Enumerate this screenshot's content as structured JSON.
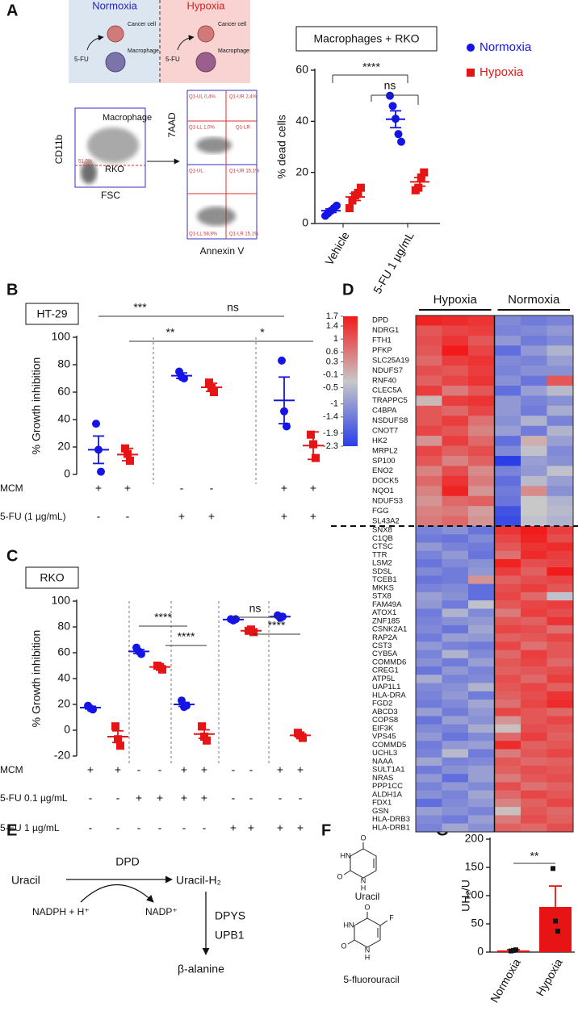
{
  "figure": {
    "panels": [
      "A",
      "B",
      "C",
      "D",
      "E",
      "F",
      "G"
    ],
    "schematic": {
      "normoxia": "Normoxia",
      "hypoxia": "Hypoxia",
      "cancer_cell": "Cancer cell",
      "macrophage": "Macrophage",
      "drug": "5-FU"
    },
    "flow": {
      "y1": "CD11b",
      "x1": "FSC",
      "gate_top": "Macrophage",
      "gate_bottom": "RKO",
      "gate_pct": "51,0%",
      "y2": "7AAD",
      "x2": "Annexin V",
      "quadrants_top": [
        "Q1-UL 0,4%",
        "Q1-UR 2,4%",
        "Q1-LL 1,0%",
        "Q1-LR"
      ],
      "quadrants_bottom": [
        "Q1-UL",
        "Q1-UR 15,1%",
        "Q1-LL 58,8%",
        "Q1-LR 15,1%"
      ]
    },
    "pathway": {
      "substrate": "Uracil",
      "enzyme": "DPD",
      "product": "Uracil-H₂",
      "cofactor_in": "NADPH + H⁺",
      "cofactor_out": "NADP⁺",
      "enzyme2": "DPYS",
      "enzyme3": "UPB1",
      "end": "β-alanine"
    },
    "structures": {
      "uracil": "Uracil",
      "fluorouracil": "5-fluorouracil",
      "atoms_uracil": [
        "O",
        "HN",
        "O",
        "N",
        "H"
      ],
      "atoms_fu": [
        "O",
        "HN",
        "F",
        "O",
        "N",
        "H"
      ]
    }
  },
  "chart_data": [
    {
      "type": "dot",
      "title": "Macrophages + RKO",
      "y_label": "% dead cells",
      "categories": [
        "Vehicle",
        "5-FU 1 µg/mL"
      ],
      "series": [
        {
          "name": "Normoxia",
          "color": "#1414e6",
          "marker": "circle",
          "values": [
            [
              3,
              4,
              5,
              6,
              7
            ],
            [
              50,
              46,
              41,
              35,
              32
            ]
          ],
          "mean": [
            5,
            40.8
          ],
          "sem": [
            0.7,
            3.3
          ]
        },
        {
          "name": "Hypoxia",
          "color": "#e61414",
          "marker": "square",
          "values": [
            [
              6,
              9,
              11,
              12,
              14
            ],
            [
              13,
              14,
              18,
              20
            ]
          ],
          "mean": [
            10.4,
            16.3
          ],
          "sem": [
            1.4,
            1.7
          ]
        }
      ],
      "annotations": [
        "****",
        "ns"
      ],
      "ylim": [
        0,
        60
      ],
      "yticks": [
        0,
        20,
        40,
        60
      ],
      "legend": "right"
    },
    {
      "type": "dot",
      "title": "HT-29",
      "y_label": "% Growth inhibition",
      "columns": [
        {
          "color": "#1414e6",
          "marker": "circle",
          "values": [
            37,
            18,
            2
          ],
          "mean": 18,
          "sem": 10
        },
        {
          "color": "#e61414",
          "marker": "square",
          "values": [
            19,
            15,
            10
          ],
          "mean": 14.5,
          "sem": 4.5
        },
        {
          "color": "#1414e6",
          "marker": "circle",
          "values": [
            75,
            71,
            70
          ],
          "mean": 72,
          "sem": 2
        },
        {
          "color": "#e61414",
          "marker": "square",
          "values": [
            67,
            63,
            60
          ],
          "mean": 63.5,
          "sem": 3
        },
        {
          "color": "#1414e6",
          "marker": "circle",
          "values": [
            83,
            46,
            35
          ],
          "mean": 54,
          "sem": 17
        },
        {
          "color": "#e61414",
          "marker": "square",
          "values": [
            29,
            22,
            12
          ],
          "mean": 21,
          "sem": 10
        }
      ],
      "rows": [
        {
          "label": "MCM",
          "signs": [
            "+",
            "+",
            "-",
            "-",
            "+",
            "+"
          ]
        },
        {
          "label": "5-FU (1 µg/mL)",
          "signs": [
            "-",
            "-",
            "+",
            "+",
            "+",
            "+"
          ]
        }
      ],
      "annotations": [
        "***",
        "ns",
        "**",
        "*"
      ],
      "ylim": [
        0,
        100
      ],
      "yticks": [
        0,
        20,
        40,
        60,
        80,
        100
      ]
    },
    {
      "type": "dot",
      "title": "RKO",
      "y_label": "% Growth inhibition",
      "columns": [
        {
          "color": "#1414e6",
          "marker": "circle",
          "values": [
            19,
            17,
            16
          ],
          "mean": 17.5,
          "sem": 1
        },
        {
          "color": "#e61414",
          "marker": "square",
          "values": [
            3,
            -7,
            -12
          ],
          "mean": -5,
          "sem": 4.5
        },
        {
          "color": "#1414e6",
          "marker": "circle",
          "values": [
            64,
            61,
            59
          ],
          "mean": 61,
          "sem": 1.5
        },
        {
          "color": "#e61414",
          "marker": "square",
          "values": [
            50,
            49,
            47
          ],
          "mean": 49,
          "sem": 1
        },
        {
          "color": "#1414e6",
          "marker": "circle",
          "values": [
            23,
            18,
            19
          ],
          "mean": 20,
          "sem": 1.5
        },
        {
          "color": "#e61414",
          "marker": "square",
          "values": [
            3,
            -5,
            -8
          ],
          "mean": -3,
          "sem": 3.3
        },
        {
          "color": "#1414e6",
          "marker": "circle",
          "values": [
            86,
            85,
            86
          ],
          "mean": 85.7,
          "sem": 0.3
        },
        {
          "color": "#e61414",
          "marker": "square",
          "values": [
            77,
            78,
            76
          ],
          "mean": 77,
          "sem": 0.6
        },
        {
          "color": "#1414e6",
          "marker": "circle",
          "values": [
            89,
            87,
            88
          ],
          "mean": 88,
          "sem": 0.6
        },
        {
          "color": "#e61414",
          "marker": "square",
          "values": [
            -2,
            -4,
            -6
          ],
          "mean": -4,
          "sem": 1.2
        }
      ],
      "rows": [
        {
          "label": "MCM",
          "signs": [
            "+",
            "+",
            "-",
            "-",
            "+",
            "+",
            "-",
            "-",
            "+",
            "+"
          ]
        },
        {
          "label": "5-FU 0.1 µg/mL",
          "signs": [
            "-",
            "-",
            "+",
            "+",
            "+",
            "+",
            "-",
            "-",
            "-",
            "-"
          ]
        },
        {
          "label": "5-FU 1 µg/mL",
          "signs": [
            "-",
            "-",
            "-",
            "-",
            "-",
            "-",
            "+",
            "+",
            "+",
            "+"
          ]
        }
      ],
      "annotations": [
        "****",
        "****",
        "ns",
        "****"
      ],
      "ylim": [
        -20,
        100
      ],
      "yticks": [
        -20,
        0,
        20,
        40,
        60,
        80,
        100
      ]
    },
    {
      "type": "heatmap",
      "column_groups": [
        "Hypoxia",
        "Normoxia"
      ],
      "colors": [
        "#2a3ee8",
        "#c8c8c8",
        "#f21a1a"
      ],
      "clim": [
        -2.3,
        1.7
      ],
      "colorbar_ticks": [
        1.7,
        1.4,
        1,
        0.6,
        0.3,
        -0.1,
        -0.5,
        -1,
        -1.4,
        -1.9,
        -2.3
      ],
      "rows": [
        "DPD",
        "NDRG1",
        "FTH1",
        "PFKP",
        "SLC25A19",
        "NDUFS7",
        "RNF40",
        "CLEC5A",
        "TRAPPC5",
        "C4BPA",
        "NSDUFS8",
        "CNOT7",
        "HK2",
        "MRPL2",
        "SP100",
        "ENO2",
        "DOCK5",
        "NQO1",
        "NDUFS3",
        "FGG",
        "SL43A2",
        "SNX8",
        "C1QB",
        "CTSC",
        "TTR",
        "LSM2",
        "SDSL",
        "TCEB1",
        "MKKS",
        "STX8",
        "FAM49A",
        "ATOX1",
        "ZNF185",
        "CSNK2A1",
        "RAP2A",
        "CST3",
        "CYB5A",
        "COMMD6",
        "CREG1",
        "ATP5L",
        "UAP1L1",
        "HLA-DRA",
        "FGD2",
        "ABCD3",
        "COPS8",
        "EIF3K",
        "VPS45",
        "COMMD5",
        "UCHL3",
        "NAAA",
        "SULT1A1",
        "NRAS",
        "PPP1CC",
        "ALDH1A",
        "FDX1",
        "GSN",
        "HLA-DRB3",
        "HLA-DRB1"
      ],
      "values": [
        [
          1.6,
          1.5,
          1.4,
          -1.2,
          -1.4,
          -1.3
        ],
        [
          1.0,
          1.2,
          1.3,
          -1.3,
          -1.2,
          -1.0
        ],
        [
          1.1,
          1.4,
          1.0,
          -1.0,
          -1.4,
          -1.2
        ],
        [
          1.0,
          1.7,
          1.2,
          -1.6,
          -1.0,
          -0.6
        ],
        [
          0.8,
          1.3,
          1.4,
          -1.2,
          -1.3,
          -0.9
        ],
        [
          1.1,
          1.0,
          1.3,
          -1.3,
          -1.1,
          -1.1
        ],
        [
          0.9,
          1.2,
          1.4,
          -1.1,
          -1.5,
          1.0
        ],
        [
          1.3,
          0.6,
          1.0,
          -1.6,
          -0.9,
          -0.5
        ],
        [
          -0.1,
          1.3,
          1.4,
          -1.0,
          -1.3,
          -1.1
        ],
        [
          1.0,
          0.8,
          1.2,
          -1.0,
          -1.4,
          -0.7
        ],
        [
          1.0,
          1.3,
          0.7,
          -1.1,
          -0.6,
          -1.3
        ],
        [
          1.2,
          1.0,
          0.5,
          -0.9,
          -1.4,
          -0.6
        ],
        [
          0.3,
          1.3,
          0.8,
          -1.6,
          0.0,
          -0.9
        ],
        [
          1.2,
          0.9,
          1.1,
          -1.2,
          -0.4,
          -1.2
        ],
        [
          1.0,
          0.5,
          0.9,
          -2.3,
          -0.9,
          -1.1
        ],
        [
          0.5,
          1.1,
          0.4,
          -1.3,
          -1.0,
          -0.4
        ],
        [
          0.8,
          1.4,
          0.6,
          -1.6,
          -0.5,
          -0.9
        ],
        [
          0.5,
          1.6,
          0.3,
          -1.4,
          0.4,
          -1.1
        ],
        [
          0.3,
          0.8,
          0.9,
          -1.5,
          -0.3,
          -0.6
        ],
        [
          0.5,
          0.6,
          0.2,
          -2.0,
          -0.3,
          -0.5
        ],
        [
          0.6,
          0.8,
          0.3,
          -2.1,
          -0.4,
          -0.6
        ],
        [
          -1.3,
          -1.1,
          -1.5,
          1.4,
          1.7,
          1.3
        ],
        [
          -1.4,
          -1.5,
          -1.2,
          1.2,
          1.6,
          1.1
        ],
        [
          -1.0,
          -1.3,
          -1.4,
          1.0,
          1.4,
          1.5
        ],
        [
          -1.3,
          -1.0,
          -1.5,
          0.7,
          1.5,
          1.3
        ],
        [
          -1.5,
          -1.2,
          -1.1,
          1.6,
          1.1,
          1.2
        ],
        [
          -1.2,
          -1.4,
          -1.0,
          1.3,
          0.9,
          1.7
        ],
        [
          -1.5,
          -1.4,
          0.3,
          0.9,
          1.1,
          1.2
        ],
        [
          -1.3,
          -1.2,
          -1.6,
          1.1,
          1.3,
          1.0
        ],
        [
          -0.9,
          -1.1,
          -1.6,
          1.2,
          0.8,
          -0.4
        ],
        [
          -1.0,
          -1.4,
          -0.4,
          1.0,
          1.2,
          1.3
        ],
        [
          -1.4,
          -0.6,
          -1.2,
          0.6,
          1.3,
          1.1
        ],
        [
          -1.3,
          -1.1,
          -1.0,
          1.0,
          0.9,
          1.4
        ],
        [
          -1.2,
          -1.5,
          -0.8,
          1.2,
          1.1,
          0.7
        ],
        [
          -1.4,
          -0.9,
          -1.0,
          0.9,
          1.0,
          1.2
        ],
        [
          -1.0,
          -1.3,
          -1.4,
          1.2,
          0.7,
          1.0
        ],
        [
          -1.3,
          -0.6,
          -1.2,
          0.8,
          1.3,
          1.0
        ],
        [
          -1.1,
          -1.4,
          -0.9,
          1.0,
          1.2,
          0.8
        ],
        [
          -1.5,
          -1.0,
          -1.3,
          0.9,
          1.0,
          1.1
        ],
        [
          -0.7,
          -1.3,
          -1.2,
          1.1,
          0.8,
          1.3
        ],
        [
          -1.2,
          -1.1,
          -0.6,
          1.0,
          1.2,
          0.9
        ],
        [
          -1.3,
          -1.0,
          -1.4,
          0.9,
          1.1,
          1.4
        ],
        [
          -1.4,
          -1.2,
          -0.8,
          0.7,
          1.2,
          1.5
        ],
        [
          -0.9,
          -1.4,
          -1.0,
          1.2,
          1.0,
          0.8
        ],
        [
          -1.5,
          -0.9,
          -1.1,
          0.3,
          1.0,
          1.2
        ],
        [
          -1.2,
          -1.3,
          -0.7,
          -0.2,
          1.1,
          1.0
        ],
        [
          -1.0,
          -1.5,
          -1.2,
          0.8,
          1.3,
          0.9
        ],
        [
          -1.4,
          -1.0,
          -0.9,
          1.5,
          0.9,
          1.0
        ],
        [
          -1.3,
          -0.5,
          -1.4,
          0.6,
          1.0,
          1.2
        ],
        [
          -0.8,
          -1.3,
          -1.2,
          1.0,
          0.8,
          0.9
        ],
        [
          -1.4,
          -1.1,
          -0.9,
          0.9,
          1.1,
          1.0
        ],
        [
          -1.0,
          -1.6,
          -0.9,
          0.6,
          1.0,
          1.1
        ],
        [
          -1.3,
          -1.0,
          -1.2,
          1.1,
          0.7,
          0.9
        ],
        [
          -1.1,
          -1.3,
          -0.8,
          0.8,
          1.2,
          1.0
        ],
        [
          -1.6,
          -1.2,
          -1.0,
          0.5,
          0.9,
          1.2
        ],
        [
          -0.9,
          -1.1,
          -1.3,
          -0.2,
          1.0,
          0.8
        ],
        [
          -1.2,
          -1.4,
          -0.9,
          0.6,
          1.1,
          0.9
        ],
        [
          -1.3,
          -0.8,
          -1.1,
          0.9,
          0.8,
          1.1
        ]
      ]
    },
    {
      "type": "bar",
      "y_label": "UH₂/U",
      "categories": [
        "Normoxia",
        "Hypoxia"
      ],
      "values": [
        3,
        80
      ],
      "sem": [
        1.5,
        37
      ],
      "points": [
        [
          2,
          3,
          4
        ],
        [
          148,
          55,
          37
        ]
      ],
      "color": "#e61414",
      "point_color": "#111111",
      "annotations": [
        "**"
      ],
      "ylim": [
        0,
        200
      ],
      "yticks": [
        0,
        50,
        100,
        150,
        200
      ]
    }
  ]
}
